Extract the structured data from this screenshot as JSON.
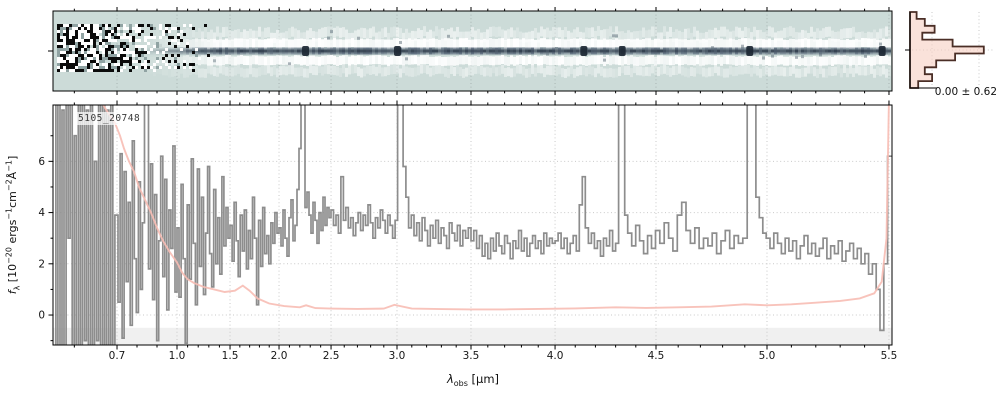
{
  "labels": {
    "id": "5105_20748",
    "noise_stat": "0.00 ± 0.62",
    "x_axis": {
      "symbol": "λ",
      "subscript": "obs",
      "unit": " [μm]"
    },
    "y_axis": {
      "p1": "f",
      "p2": "λ",
      "p3": " [10",
      "p4": "−20",
      "p5": " ergs",
      "p6": "−1",
      "p7": "cm",
      "p8": "−2",
      "p9": "Å",
      "p10": "−1",
      "p11": "]"
    }
  },
  "colors": {
    "flux_line": "#8d8d8d",
    "error_line": "#f7bdb4",
    "hist_fill": "#f6cfc2",
    "hist_edge": "#4a2e26",
    "bg_2d": "#ccdbd8",
    "trace_dark": "#45556a",
    "blob_dark": "#1c2733",
    "grid": "#c9c9c9",
    "below_zero_band": "#f0f0f0",
    "spine": "#000000",
    "tick_label": "#161616"
  },
  "chart_data": [
    {
      "id": "spec2d",
      "type": "heatmap",
      "description": "2D rectified spectrum cutout: pale teal background, noisy saturated region at short wavelengths, dark spectral trace along center with white residual bands above and below, dark knots at emission lines",
      "x_range_um": [
        0.55,
        5.51
      ],
      "noisy_region_um": [
        0.55,
        1.55
      ],
      "emission_line_features_um": [
        2.25,
        3.0,
        4.14,
        4.33,
        4.92,
        5.47
      ]
    },
    {
      "id": "spec1d",
      "type": "line",
      "title": "5105_20748",
      "xlabel": "lambda_obs [um]",
      "ylabel": "f_lambda [10^-20 ergs^-1 cm^-2 A^-1]",
      "xlim": [
        0.55,
        5.51
      ],
      "ylim": [
        -1.17,
        8.2
      ],
      "grid": true,
      "y_ticks": [
        0,
        2,
        4,
        6
      ],
      "y_minor_ticks": [
        -1,
        1,
        3,
        5,
        7
      ],
      "x_ticks": [
        {
          "v": 0.7,
          "label": "0.7",
          "f": 0.0763
        },
        {
          "v": 1.0,
          "label": "1.0",
          "f": 0.1478
        },
        {
          "v": 1.5,
          "label": "1.5",
          "f": 0.211
        },
        {
          "v": 2.0,
          "label": "2.0",
          "f": 0.2694
        },
        {
          "v": 2.5,
          "label": "2.5",
          "f": 0.3314
        },
        {
          "v": 3.0,
          "label": "3.0",
          "f": 0.41
        },
        {
          "v": 3.5,
          "label": "3.5",
          "f": 0.4982
        },
        {
          "v": 4.0,
          "label": "4.0",
          "f": 0.5984
        },
        {
          "v": 4.5,
          "label": "4.5",
          "f": 0.7187
        },
        {
          "v": 5.0,
          "label": "5.0",
          "f": 0.851
        },
        {
          "v": 5.5,
          "label": "5.5",
          "f": 0.9964
        }
      ],
      "x_domain": {
        "left": {
          "v": 0.55,
          "f": 0.0
        },
        "right": {
          "v": 5.51,
          "f": 1.0
        }
      },
      "x_minor_step": 0.1,
      "below_zero_band_top": -0.5,
      "series": [
        {
          "name": "flux",
          "style": "steps",
          "segments": [
            {
              "l0": 0.552,
              "l1": 0.695,
              "values": [
                9,
                -2,
                9,
                -2,
                8,
                -2,
                9,
                3,
                9,
                -2,
                7,
                -1.5,
                9,
                -2,
                9,
                -1,
                8,
                -2,
                9,
                -2,
                6,
                -1,
                9,
                -2,
                9,
                -1.5,
                8,
                -2,
                9,
                -2
              ]
            },
            {
              "l0": 0.695,
              "l1": 1.0,
              "values": [
                3.9,
                0.5,
                6.3,
                -0.9,
                5.6,
                1.3,
                4.4,
                -0.4,
                6.8,
                2.2,
                0.1,
                5.2,
                1.0,
                3.6,
                8.6,
                8.9,
                1.8,
                5.9,
                0.6,
                4.7,
                -1.0,
                2.9,
                6.2,
                1.5,
                5.3,
                0.2,
                4.1,
                2.6,
                6.6,
                0.9
              ]
            },
            {
              "l0": 1.0,
              "l1": 1.5,
              "values": [
                3.4,
                0.7,
                5.1,
                2.2,
                -1.1,
                4.3,
                1.4,
                6.1,
                2.8,
                0.4,
                5.7,
                1.9,
                4.6,
                0.8,
                3.2,
                5.8,
                2.4,
                1.1,
                4.9,
                2.0,
                3.8,
                1.6,
                5.4,
                2.7,
                4.2,
                3.0
              ]
            },
            {
              "l0": 1.5,
              "l1": 2.0,
              "values": [
                3.5,
                2.1,
                4.4,
                2.9,
                1.5,
                3.9,
                2.5,
                4.1,
                1.8,
                3.3,
                2.2,
                4.6,
                3.0,
                0.4,
                3.7,
                1.9,
                4.2,
                2.4,
                3.1,
                2.0,
                3.6,
                2.8,
                4.0,
                3.2
              ]
            },
            {
              "l0": 2.0,
              "l1": 2.5,
              "values": [
                3.4,
                2.7,
                4.1,
                3.0,
                2.3,
                3.8,
                4.5,
                2.9,
                3.5,
                4.9,
                6.5,
                9.5,
                9.5,
                4.2,
                4.8,
                3.9,
                3.2,
                4.4,
                3.7,
                2.8,
                4.0,
                3.3,
                4.6,
                3.5,
                4.2,
                3.8
              ]
            },
            {
              "l0": 2.5,
              "l1": 3.06,
              "values": [
                4.1,
                3.5,
                3.9,
                3.2,
                5.4,
                3.7,
                4.2,
                3.4,
                3.8,
                3.1,
                3.6,
                4.0,
                3.3,
                3.9,
                3.5,
                4.3,
                3.6,
                3.0,
                3.8,
                3.4,
                4.1,
                3.7,
                3.2,
                3.9,
                3.5,
                3.0,
                3.7,
                9.5,
                9.5,
                5.8
              ]
            },
            {
              "l0": 3.06,
              "l1": 3.5,
              "values": [
                4.6,
                3.4,
                3.9,
                3.1,
                3.6,
                2.9,
                3.8,
                3.3,
                2.7,
                3.5,
                3.0,
                3.7,
                2.8,
                3.4,
                3.1,
                2.6,
                3.6,
                3.2,
                2.9,
                3.5,
                2.7,
                3.3,
                3.0,
                3.4
              ]
            },
            {
              "l0": 3.5,
              "l1": 4.0,
              "values": [
                2.9,
                3.3,
                2.6,
                3.1,
                2.3,
                2.8,
                2.2,
                3.0,
                2.5,
                3.2,
                2.7,
                2.4,
                3.1,
                2.8,
                2.2,
                2.9,
                2.6,
                3.3,
                2.5,
                3.0,
                2.3,
                2.8,
                3.1,
                2.6,
                2.9,
                2.4,
                3.2,
                2.7,
                3.0,
                2.8
              ]
            },
            {
              "l0": 4.0,
              "l1": 4.36,
              "values": [
                2.9,
                3.2,
                2.6,
                3.0,
                2.4,
                2.8,
                3.1,
                2.5,
                4.3,
                5.4,
                3.4,
                2.8,
                3.2,
                2.6,
                2.9,
                2.3,
                3.0,
                2.7,
                3.3,
                2.5,
                2.8,
                9.5,
                9.5,
                3.9
              ]
            },
            {
              "l0": 4.36,
              "l1": 4.95,
              "values": [
                3.2,
                2.7,
                3.5,
                2.9,
                2.4,
                3.1,
                2.6,
                3.3,
                2.8,
                3.6,
                3.0,
                2.5,
                3.9,
                4.4,
                3.3,
                2.8,
                3.4,
                2.6,
                3.0,
                2.7,
                3.2,
                2.4,
                2.9,
                3.3,
                2.6,
                3.1,
                2.8,
                3.0,
                9.5,
                9.5
              ]
            },
            {
              "l0": 4.95,
              "l1": 5.51,
              "values": [
                4.6,
                3.8,
                3.2,
                3.0,
                2.6,
                3.2,
                2.8,
                2.4,
                3.0,
                2.5,
                2.9,
                2.2,
                2.7,
                3.1,
                2.4,
                2.8,
                2.3,
                2.6,
                3.0,
                2.2,
                2.7,
                2.4,
                2.9,
                2.1,
                2.5,
                2.8,
                2.2,
                2.6,
                2.0,
                2.4,
                1.6,
                2.0,
                1.0,
                -0.6,
                2.0,
                6.2
              ]
            }
          ]
        },
        {
          "name": "uncertainty",
          "style": "line",
          "points": [
            [
              0.552,
              9
            ],
            [
              0.62,
              9
            ],
            [
              0.655,
              8.6
            ],
            [
              0.675,
              8.0
            ],
            [
              0.695,
              7.5
            ],
            [
              0.715,
              7.0
            ],
            [
              0.735,
              6.5
            ],
            [
              0.76,
              6.0
            ],
            [
              0.785,
              5.6
            ],
            [
              0.81,
              5.0
            ],
            [
              0.84,
              4.5
            ],
            [
              0.87,
              4.0
            ],
            [
              0.9,
              3.4
            ],
            [
              0.93,
              2.9
            ],
            [
              0.96,
              2.5
            ],
            [
              1.0,
              2.05
            ],
            [
              1.05,
              1.65
            ],
            [
              1.1,
              1.4
            ],
            [
              1.16,
              1.25
            ],
            [
              1.25,
              1.1
            ],
            [
              1.35,
              1.0
            ],
            [
              1.45,
              0.9
            ],
            [
              1.55,
              0.95
            ],
            [
              1.63,
              1.15
            ],
            [
              1.7,
              0.95
            ],
            [
              1.78,
              0.65
            ],
            [
              1.9,
              0.45
            ],
            [
              2.05,
              0.35
            ],
            [
              2.2,
              0.3
            ],
            [
              2.26,
              0.38
            ],
            [
              2.35,
              0.27
            ],
            [
              2.5,
              0.25
            ],
            [
              2.7,
              0.24
            ],
            [
              2.9,
              0.25
            ],
            [
              2.98,
              0.4
            ],
            [
              3.1,
              0.25
            ],
            [
              3.3,
              0.23
            ],
            [
              3.5,
              0.22
            ],
            [
              3.7,
              0.22
            ],
            [
              3.9,
              0.24
            ],
            [
              4.1,
              0.26
            ],
            [
              4.3,
              0.3
            ],
            [
              4.45,
              0.28
            ],
            [
              4.6,
              0.3
            ],
            [
              4.75,
              0.33
            ],
            [
              4.9,
              0.42
            ],
            [
              5.0,
              0.38
            ],
            [
              5.1,
              0.42
            ],
            [
              5.2,
              0.48
            ],
            [
              5.3,
              0.55
            ],
            [
              5.38,
              0.65
            ],
            [
              5.44,
              0.85
            ],
            [
              5.47,
              1.3
            ],
            [
              5.49,
              3.0
            ],
            [
              5.5,
              8.5
            ]
          ]
        }
      ]
    },
    {
      "id": "pixel_histogram",
      "type": "histogram",
      "orientation": "horizontal",
      "annotation": "0.00 ± 0.62",
      "mean": 0.0,
      "sigma": 0.62,
      "bins_rel": [
        0.08,
        0.18,
        0.3,
        0.15,
        0.52,
        0.9,
        0.55,
        0.32,
        0.18,
        0.27,
        0.1
      ]
    }
  ]
}
